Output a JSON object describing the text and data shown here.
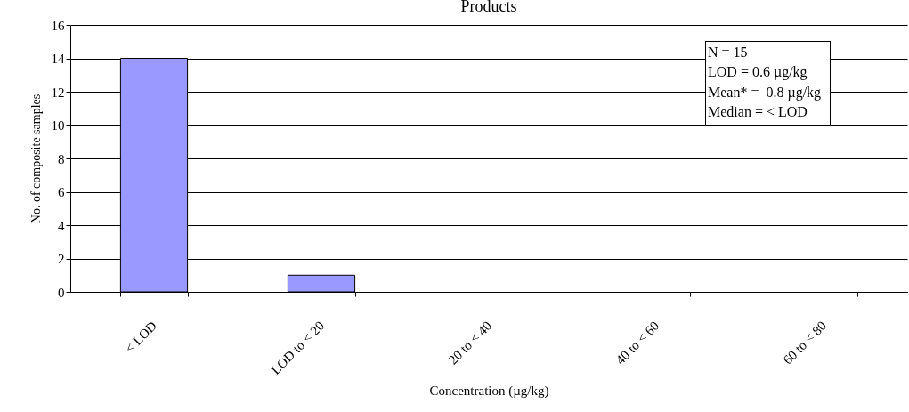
{
  "chart_data": {
    "type": "bar",
    "title": "Products",
    "xlabel": "Concentration (µg/kg)",
    "ylabel": "No. of composite samples",
    "categories": [
      "< LOD",
      "LOD to < 20",
      "20 to < 40",
      "40 to < 60",
      "60 to < 80"
    ],
    "values": [
      14,
      1,
      0,
      0,
      0
    ],
    "color": "#9999ff",
    "ylim": [
      0,
      16
    ],
    "yticks": [
      0,
      2,
      4,
      6,
      8,
      10,
      12,
      14,
      16
    ],
    "grid": "y",
    "annotations": [
      "N = 15",
      "LOD = 0.6 µg/kg",
      "Mean* =  0.8 µg/kg",
      "Median = < LOD"
    ]
  }
}
